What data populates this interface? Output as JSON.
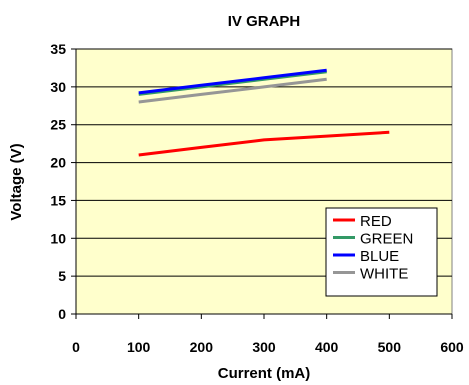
{
  "chart_data": {
    "type": "line",
    "title": "IV GRAPH",
    "xlabel": "Current (mA)",
    "ylabel": "Voltage (V)",
    "xlim": [
      0,
      600
    ],
    "ylim": [
      0,
      35
    ],
    "x_ticks": [
      0,
      100,
      200,
      300,
      400,
      500,
      600
    ],
    "y_ticks": [
      0,
      5,
      10,
      15,
      20,
      25,
      30,
      35
    ],
    "grid": "horizontal",
    "legend_position": "bottom-right",
    "plot_background": "#FFFFCC",
    "series": [
      {
        "name": "RED",
        "color": "#FF0000",
        "x": [
          100,
          200,
          300,
          400,
          500
        ],
        "y": [
          21.0,
          22.0,
          23.0,
          23.5,
          24.0
        ]
      },
      {
        "name": "GREEN",
        "color": "#339966",
        "x": [
          100,
          200,
          300,
          400
        ],
        "y": [
          29.0,
          30.0,
          31.0,
          32.0
        ]
      },
      {
        "name": "BLUE",
        "color": "#0000FF",
        "x": [
          100,
          200,
          300,
          400
        ],
        "y": [
          29.2,
          30.2,
          31.2,
          32.2
        ]
      },
      {
        "name": "WHITE",
        "color": "#969696",
        "x": [
          100,
          200,
          300,
          400
        ],
        "y": [
          28.0,
          29.0,
          30.0,
          31.0
        ]
      }
    ]
  }
}
